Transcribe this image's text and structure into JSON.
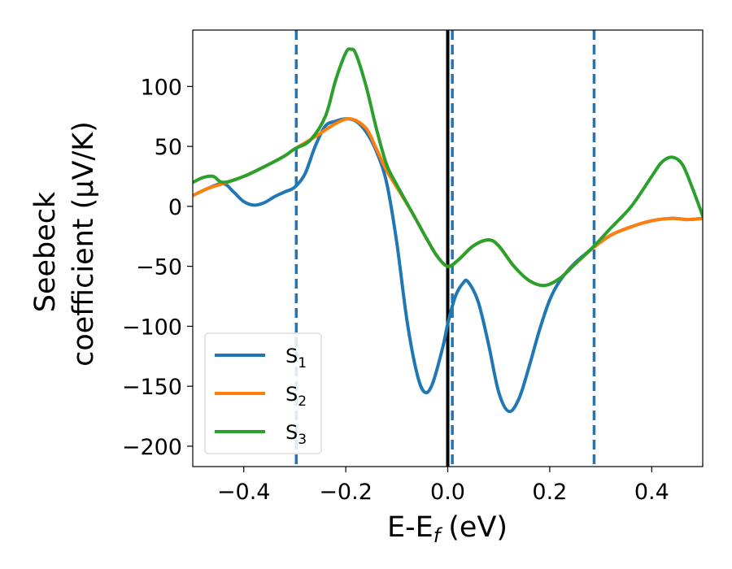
{
  "chart_data": {
    "type": "line",
    "xlabel": "E-E",
    "xlabel_sub": "f",
    "xlabel_unit": "(eV)",
    "ylabel_line1": "Seebeck",
    "ylabel_line2": "coefficient  (μV/K)",
    "xlim": [
      -0.5,
      0.5
    ],
    "ylim": [
      -217,
      147
    ],
    "xticks": [
      -0.4,
      -0.2,
      0.0,
      0.2,
      0.4
    ],
    "xtick_labels": [
      "−0.4",
      "−0.2",
      "0.0",
      "0.2",
      "0.4"
    ],
    "yticks": [
      100,
      50,
      0,
      -50,
      -100,
      -150,
      -200
    ],
    "ytick_labels": [
      "100",
      "50",
      "0",
      "−50",
      "−100",
      "−150",
      "−200"
    ],
    "grid": false,
    "legend_position": "lower-left",
    "vertical_lines": [
      {
        "x": -0.297,
        "style": "dashed",
        "color": "#1f77b4"
      },
      {
        "x": 0.009,
        "style": "dashed",
        "color": "#1f77b4"
      },
      {
        "x": 0.287,
        "style": "dashed",
        "color": "#1f77b4"
      },
      {
        "x": 0.0,
        "style": "solid",
        "color": "#000000"
      }
    ],
    "series": [
      {
        "name": "S",
        "sub": "1",
        "color": "#1f77b4",
        "points": [
          [
            -0.5,
            9
          ],
          [
            -0.47,
            15
          ],
          [
            -0.44,
            19
          ],
          [
            -0.42,
            12
          ],
          [
            -0.4,
            4
          ],
          [
            -0.38,
            1
          ],
          [
            -0.36,
            3
          ],
          [
            -0.34,
            8
          ],
          [
            -0.32,
            12
          ],
          [
            -0.3,
            16
          ],
          [
            -0.28,
            27
          ],
          [
            -0.26,
            50
          ],
          [
            -0.24,
            67
          ],
          [
            -0.22,
            71
          ],
          [
            -0.2,
            73
          ],
          [
            -0.18,
            71
          ],
          [
            -0.16,
            62
          ],
          [
            -0.14,
            46
          ],
          [
            -0.12,
            20
          ],
          [
            -0.1,
            -30
          ],
          [
            -0.08,
            -95
          ],
          [
            -0.06,
            -140
          ],
          [
            -0.045,
            -155
          ],
          [
            -0.03,
            -148
          ],
          [
            -0.01,
            -118
          ],
          [
            0.0,
            -98
          ],
          [
            0.015,
            -75
          ],
          [
            0.03,
            -64
          ],
          [
            0.04,
            -63
          ],
          [
            0.06,
            -80
          ],
          [
            0.08,
            -115
          ],
          [
            0.1,
            -155
          ],
          [
            0.12,
            -171
          ],
          [
            0.14,
            -160
          ],
          [
            0.16,
            -133
          ],
          [
            0.18,
            -103
          ],
          [
            0.2,
            -78
          ],
          [
            0.22,
            -62
          ],
          [
            0.25,
            -47
          ],
          [
            0.287,
            -34
          ],
          [
            0.32,
            -24
          ],
          [
            0.36,
            -17
          ],
          [
            0.4,
            -12
          ],
          [
            0.44,
            -10
          ],
          [
            0.47,
            -11
          ],
          [
            0.5,
            -10
          ]
        ]
      },
      {
        "name": "S",
        "sub": "2",
        "color": "#ff7f0e",
        "points": [
          [
            -0.5,
            9
          ],
          [
            -0.47,
            15
          ],
          [
            -0.44,
            19
          ],
          [
            -0.4,
            25
          ],
          [
            -0.36,
            33
          ],
          [
            -0.32,
            42
          ],
          [
            -0.3,
            48
          ],
          [
            -0.26,
            58
          ],
          [
            -0.22,
            69
          ],
          [
            -0.19,
            73
          ],
          [
            -0.16,
            65
          ],
          [
            -0.14,
            48
          ],
          [
            -0.12,
            30
          ],
          [
            -0.1,
            16
          ],
          [
            -0.07,
            -5
          ],
          [
            -0.04,
            -28
          ],
          [
            -0.02,
            -42
          ],
          [
            0.0,
            -50
          ],
          [
            0.02,
            -45
          ],
          [
            0.05,
            -33
          ],
          [
            0.08,
            -28
          ],
          [
            0.1,
            -33
          ],
          [
            0.13,
            -50
          ],
          [
            0.16,
            -62
          ],
          [
            0.19,
            -66
          ],
          [
            0.22,
            -60
          ],
          [
            0.25,
            -48
          ],
          [
            0.287,
            -34
          ],
          [
            0.32,
            -24
          ],
          [
            0.36,
            -17
          ],
          [
            0.4,
            -12
          ],
          [
            0.44,
            -10
          ],
          [
            0.47,
            -11
          ],
          [
            0.5,
            -10
          ]
        ]
      },
      {
        "name": "S",
        "sub": "3",
        "color": "#2ca02c",
        "points": [
          [
            -0.5,
            20
          ],
          [
            -0.48,
            24
          ],
          [
            -0.46,
            25
          ],
          [
            -0.44,
            20
          ],
          [
            -0.4,
            25
          ],
          [
            -0.36,
            33
          ],
          [
            -0.32,
            42
          ],
          [
            -0.3,
            48
          ],
          [
            -0.27,
            55
          ],
          [
            -0.24,
            75
          ],
          [
            -0.22,
            105
          ],
          [
            -0.2,
            128
          ],
          [
            -0.19,
            131
          ],
          [
            -0.18,
            127
          ],
          [
            -0.16,
            100
          ],
          [
            -0.14,
            65
          ],
          [
            -0.12,
            35
          ],
          [
            -0.1,
            18
          ],
          [
            -0.07,
            -5
          ],
          [
            -0.04,
            -28
          ],
          [
            -0.02,
            -42
          ],
          [
            0.0,
            -50
          ],
          [
            0.02,
            -45
          ],
          [
            0.05,
            -33
          ],
          [
            0.08,
            -28
          ],
          [
            0.1,
            -33
          ],
          [
            0.13,
            -50
          ],
          [
            0.16,
            -62
          ],
          [
            0.19,
            -66
          ],
          [
            0.22,
            -60
          ],
          [
            0.25,
            -48
          ],
          [
            0.287,
            -33
          ],
          [
            0.32,
            -18
          ],
          [
            0.36,
            0
          ],
          [
            0.4,
            25
          ],
          [
            0.42,
            37
          ],
          [
            0.44,
            41
          ],
          [
            0.46,
            35
          ],
          [
            0.48,
            15
          ],
          [
            0.5,
            -8
          ]
        ]
      }
    ]
  }
}
